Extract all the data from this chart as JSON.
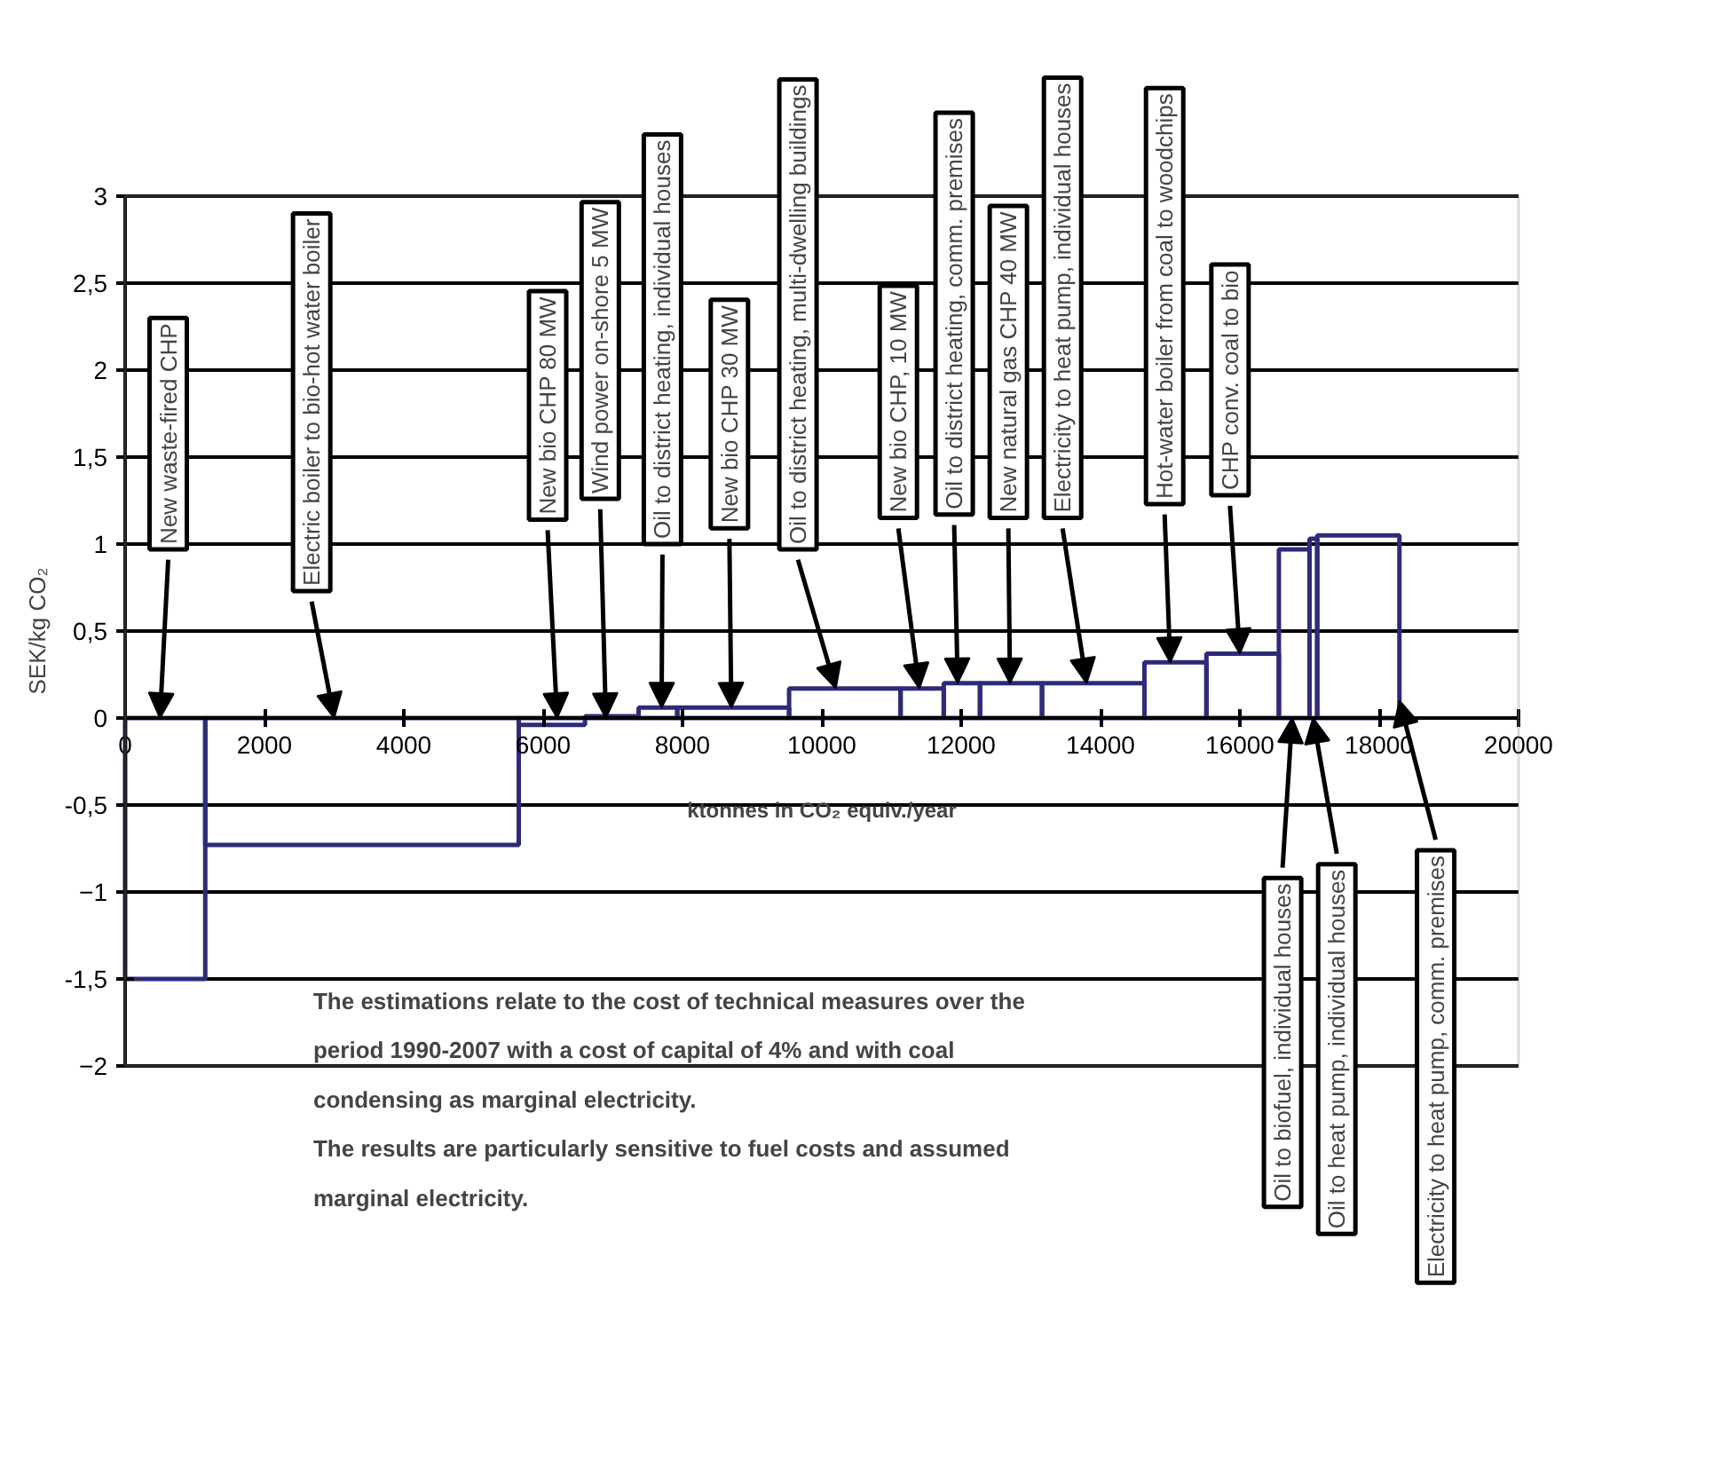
{
  "chart_data": {
    "type": "histogram",
    "xlabel": "ktonnes in CO₂ equiv./year",
    "ylabel": "SEK/kg CO₂",
    "bins": [
      0,
      1150,
      5650,
      6600,
      7370,
      7925,
      9530,
      11130,
      11750,
      12270,
      13160,
      14630,
      15520,
      16560,
      17000,
      17110,
      18290
    ],
    "values": [
      -1.5,
      -0.73,
      -0.04,
      0.01,
      0.06,
      0.06,
      0.17,
      0.17,
      0.2,
      0.2,
      0.2,
      0.32,
      0.37,
      0.97,
      1.03,
      1.05
    ],
    "color": "#2e2a7a",
    "xlim": [
      0,
      20000
    ],
    "ylim": [
      -2,
      3
    ],
    "xticks": [
      0,
      2000,
      4000,
      6000,
      8000,
      10000,
      12000,
      14000,
      16000,
      18000,
      20000
    ],
    "yticks": [
      -2,
      {
        "value": -1.5,
        "label": "-1,5"
      },
      -1,
      {
        "value": -0.5,
        "label": "-0,5"
      },
      0,
      {
        "value": 0.5,
        "label": "0,5"
      },
      1,
      {
        "value": 1.5,
        "label": "1,5"
      },
      2,
      {
        "value": 2.5,
        "label": "2,5"
      },
      3
    ],
    "grid": "y",
    "annotations": [
      {
        "text": "New waste-fired CHP",
        "x": 500,
        "y": 0
      },
      {
        "text": "Electric boiler to bio-hot water boiler",
        "x": 3000,
        "y": 0
      },
      {
        "text": "New bio CHP 80 MW",
        "x": 6200,
        "y": 0
      },
      {
        "text": "Wind power on-shore 5 MW",
        "x": 6900,
        "y": 0
      },
      {
        "text": "Oil to district heating, individual houses",
        "x": 7700,
        "y": 0.06
      },
      {
        "text": "New bio CHP 30 MW",
        "x": 8700,
        "y": 0.06
      },
      {
        "text": "Oil to district heating, multi-dwelling buildings",
        "x": 10200,
        "y": 0.17
      },
      {
        "text": "New bio CHP, 10 MW",
        "x": 11400,
        "y": 0.17
      },
      {
        "text": "Oil to district heating, comm. premises",
        "x": 11950,
        "y": 0.2
      },
      {
        "text": "New natural gas CHP 40 MW",
        "x": 12700,
        "y": 0.2
      },
      {
        "text": "Electricity to heat pump, individual houses",
        "x": 13800,
        "y": 0.2
      },
      {
        "text": "Hot-water boiler from coal to woodchips",
        "x": 15000,
        "y": 0.32
      },
      {
        "text": "CHP conv. coal to bio",
        "x": 16000,
        "y": 0.37
      },
      {
        "text": "Oil to biofuel, individual houses",
        "x": 16750,
        "y": 0
      },
      {
        "text": "Oil to heat pump, individual houses",
        "x": 17050,
        "y": 0
      },
      {
        "text": "Electricity to heat pump, comm. premises",
        "x": 18290,
        "y": 0.1
      },
      "The estimations relate to the cost of technical measures over the period 1990-2007 with a cost of capital of 4% and with coal condensing as marginal electricity.",
      "The results are particularly sensitive to fuel costs and assumed marginal electricity."
    ]
  }
}
